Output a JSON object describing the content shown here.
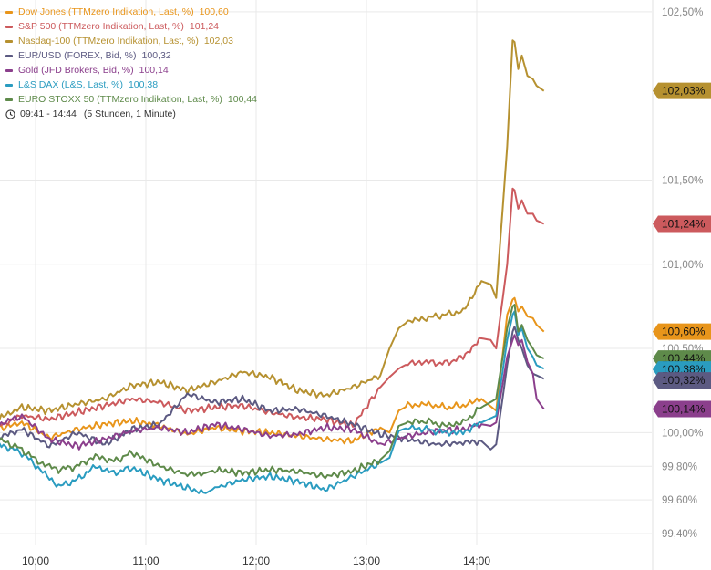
{
  "legend": {
    "items": [
      {
        "label": "Dow Jones (TTMzero Indikation, Last, %)",
        "value": "100,60",
        "color": "#e8951b"
      },
      {
        "label": "S&P 500 (TTMzero Indikation, Last, %)",
        "value": "101,24",
        "color": "#cc5a5d"
      },
      {
        "label": "Nasdaq-100 (TTMzero Indikation, Last, %)",
        "value": "102,03",
        "color": "#b69130"
      },
      {
        "label": "EUR/USD (FOREX, Bid, %)",
        "value": "100,32",
        "color": "#5c5a82"
      },
      {
        "label": "Gold (JFD Brokers, Bid, %)",
        "value": "100,14",
        "color": "#8b3f8c"
      },
      {
        "label": "L&S DAX (L&S, Last, %)",
        "value": "100,38",
        "color": "#2a9cc0"
      },
      {
        "label": "EURO STOXX 50 (TTMzero Indikation, Last, %)",
        "value": "100,44",
        "color": "#5e8a4a"
      }
    ],
    "time_range": "09:41 - 14:44",
    "duration": "(5 Stunden, 1 Minute)"
  },
  "chart_data": {
    "type": "line",
    "x_ticks": [
      "10:00",
      "11:00",
      "12:00",
      "13:00",
      "14:00"
    ],
    "x_tick_minutes": [
      600,
      660,
      720,
      780,
      840
    ],
    "x_range_minutes": [
      581,
      884
    ],
    "y_ticks": [
      99.4,
      99.6,
      99.8,
      100.0,
      100.5,
      101.0,
      101.5,
      102.5
    ],
    "y_tick_labels": [
      "99,40%",
      "99,60%",
      "99,80%",
      "100,00%",
      "100,50%",
      "101,00%",
      "101,50%",
      "102,50%"
    ],
    "ylim": [
      99.33,
      102.57
    ],
    "grid": true,
    "series": [
      {
        "name": "Dow Jones (TTMzero Indikation, Last, %)",
        "color": "#e8951b",
        "last_label": "100,60%",
        "x": [
          581,
          590,
          600,
          615,
          630,
          645,
          660,
          675,
          690,
          705,
          720,
          735,
          750,
          765,
          780,
          795,
          800,
          805,
          810,
          820,
          830,
          840,
          850,
          858,
          864,
          867,
          868,
          870,
          872,
          875,
          878,
          880,
          884
        ],
        "y": [
          100.02,
          100.03,
          100.06,
          99.97,
          100.02,
          100.05,
          100.07,
          100.04,
          99.99,
          100.03,
          100.01,
          100.0,
          99.98,
          99.96,
          99.95,
          100.03,
          100.0,
          100.13,
          100.16,
          100.17,
          100.15,
          100.16,
          100.2,
          100.13,
          100.7,
          100.79,
          100.8,
          100.72,
          100.75,
          100.69,
          100.68,
          100.64,
          100.6
        ]
      },
      {
        "name": "S&P 500 (TTMzero Indikation, Last, %)",
        "color": "#cc5a5d",
        "last_label": "101,24%",
        "x": [
          581,
          590,
          600,
          615,
          630,
          645,
          660,
          675,
          690,
          705,
          720,
          735,
          750,
          765,
          780,
          795,
          800,
          805,
          810,
          820,
          830,
          840,
          850,
          855,
          858,
          864,
          867,
          868,
          870,
          872,
          875,
          878,
          880,
          884
        ],
        "y": [
          100.03,
          100.05,
          100.1,
          100.08,
          100.12,
          100.16,
          100.2,
          100.18,
          100.13,
          100.15,
          100.16,
          100.12,
          100.09,
          100.08,
          100.04,
          100.27,
          100.33,
          100.38,
          100.41,
          100.42,
          100.41,
          100.45,
          100.56,
          100.55,
          100.5,
          101.0,
          101.45,
          101.44,
          101.33,
          101.38,
          101.3,
          101.3,
          101.26,
          101.24
        ]
      },
      {
        "name": "Nasdaq-100 (TTMzero Indikation, Last, %)",
        "color": "#b69130",
        "last_label": "102,03%",
        "x": [
          581,
          590,
          600,
          615,
          630,
          645,
          660,
          675,
          690,
          705,
          720,
          735,
          750,
          765,
          780,
          795,
          800,
          805,
          810,
          820,
          830,
          840,
          850,
          855,
          858,
          864,
          867,
          868,
          870,
          872,
          875,
          878,
          880,
          884
        ],
        "y": [
          100.03,
          100.1,
          100.15,
          100.13,
          100.17,
          100.2,
          100.28,
          100.3,
          100.25,
          100.3,
          100.36,
          100.33,
          100.25,
          100.22,
          100.27,
          100.34,
          100.5,
          100.62,
          100.66,
          100.68,
          100.7,
          100.72,
          100.9,
          100.88,
          100.8,
          101.7,
          102.33,
          102.32,
          102.16,
          102.24,
          102.12,
          102.1,
          102.06,
          102.03
        ]
      },
      {
        "name": "EUR/USD (FOREX, Bid, %)",
        "color": "#5c5a82",
        "last_label": "100,32%",
        "x": [
          581,
          590,
          600,
          615,
          630,
          645,
          660,
          675,
          690,
          705,
          720,
          735,
          750,
          765,
          780,
          795,
          810,
          825,
          840,
          850,
          855,
          858,
          864,
          867,
          868,
          870,
          872,
          875,
          878,
          880,
          884
        ],
        "y": [
          99.97,
          99.98,
          100.02,
          99.92,
          100.0,
          99.93,
          100.02,
          100.05,
          100.23,
          100.18,
          100.2,
          100.13,
          100.14,
          100.1,
          100.05,
          99.99,
          99.96,
          99.93,
          99.94,
          99.95,
          99.9,
          99.93,
          100.4,
          100.6,
          100.63,
          100.55,
          100.5,
          100.4,
          100.35,
          100.34,
          100.32
        ]
      },
      {
        "name": "Gold (JFD Brokers, Bid, %)",
        "color": "#8b3f8c",
        "last_label": "100,14%",
        "x": [
          581,
          590,
          600,
          615,
          630,
          645,
          660,
          675,
          690,
          705,
          720,
          735,
          750,
          765,
          780,
          795,
          810,
          825,
          840,
          850,
          855,
          858,
          864,
          867,
          868,
          870,
          872,
          875,
          878,
          880,
          884
        ],
        "y": [
          100.0,
          100.06,
          100.1,
          99.96,
          99.92,
          99.96,
          100.01,
          100.03,
          100.0,
          100.05,
          100.02,
          99.98,
          99.99,
          100.03,
          100.02,
          99.93,
          99.98,
          100.01,
          100.02,
          100.05,
          100.04,
          100.06,
          100.45,
          100.55,
          100.58,
          100.52,
          100.55,
          100.42,
          100.35,
          100.2,
          100.14
        ]
      },
      {
        "name": "L&S DAX (L&S, Last, %)",
        "color": "#2a9cc0",
        "last_label": "100,38%",
        "x": [
          581,
          590,
          600,
          610,
          620,
          630,
          640,
          650,
          660,
          675,
          690,
          700,
          705,
          720,
          735,
          750,
          765,
          780,
          795,
          800,
          805,
          810,
          820,
          830,
          840,
          850,
          858,
          864,
          867,
          868,
          870,
          872,
          875,
          878,
          880,
          884
        ],
        "y": [
          99.96,
          99.92,
          99.88,
          99.78,
          99.68,
          99.72,
          99.8,
          99.76,
          99.79,
          99.72,
          99.67,
          99.64,
          99.67,
          99.72,
          99.74,
          99.71,
          99.66,
          99.74,
          99.82,
          99.85,
          100.01,
          100.03,
          100.02,
          100.0,
          100.0,
          100.06,
          100.1,
          100.55,
          100.7,
          100.72,
          100.58,
          100.62,
          100.5,
          100.45,
          100.4,
          100.38
        ]
      },
      {
        "name": "EURO STOXX 50 (TTMzero Indikation, Last, %)",
        "color": "#5e8a4a",
        "last_label": "100,44%",
        "x": [
          581,
          590,
          600,
          610,
          620,
          630,
          640,
          650,
          660,
          675,
          690,
          700,
          705,
          720,
          735,
          750,
          765,
          780,
          795,
          800,
          805,
          810,
          820,
          830,
          840,
          850,
          858,
          864,
          867,
          868,
          870,
          872,
          875,
          878,
          880,
          884
        ],
        "y": [
          99.97,
          99.95,
          99.9,
          99.82,
          99.78,
          99.8,
          99.86,
          99.83,
          99.88,
          99.8,
          99.75,
          99.76,
          99.78,
          99.76,
          99.78,
          99.77,
          99.74,
          99.77,
          99.84,
          99.89,
          100.04,
          100.06,
          100.07,
          100.04,
          100.06,
          100.15,
          100.2,
          100.62,
          100.75,
          100.76,
          100.6,
          100.64,
          100.55,
          100.5,
          100.46,
          100.44
        ]
      }
    ]
  }
}
